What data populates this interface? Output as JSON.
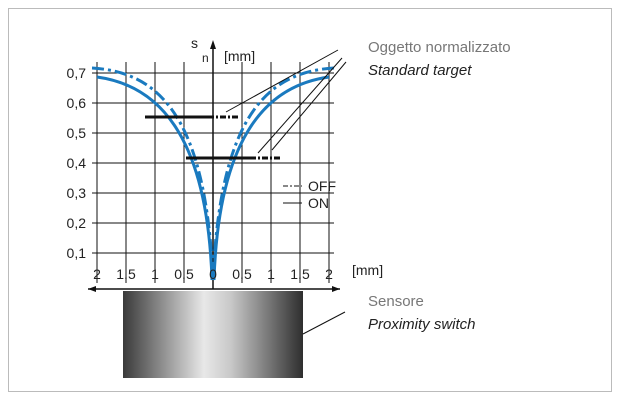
{
  "axes": {
    "y_symbol": "s",
    "y_subscript": "n",
    "y_unit": "[mm]",
    "x_unit": "[mm]",
    "y_ticks": [
      "0,7",
      "0,6",
      "0,5",
      "0,4",
      "0,3",
      "0,2",
      "0,1"
    ],
    "x_ticks": [
      "2",
      "1,5",
      "1",
      "0,5",
      "0",
      "0,5",
      "1",
      "1,5",
      "2"
    ]
  },
  "legend": {
    "off": "OFF",
    "on": "ON"
  },
  "target": {
    "label_it": "Oggetto normalizzato",
    "label_en": "Standard target"
  },
  "sensor": {
    "label_it": "Sensore",
    "label_en": "Proximity switch"
  }
}
